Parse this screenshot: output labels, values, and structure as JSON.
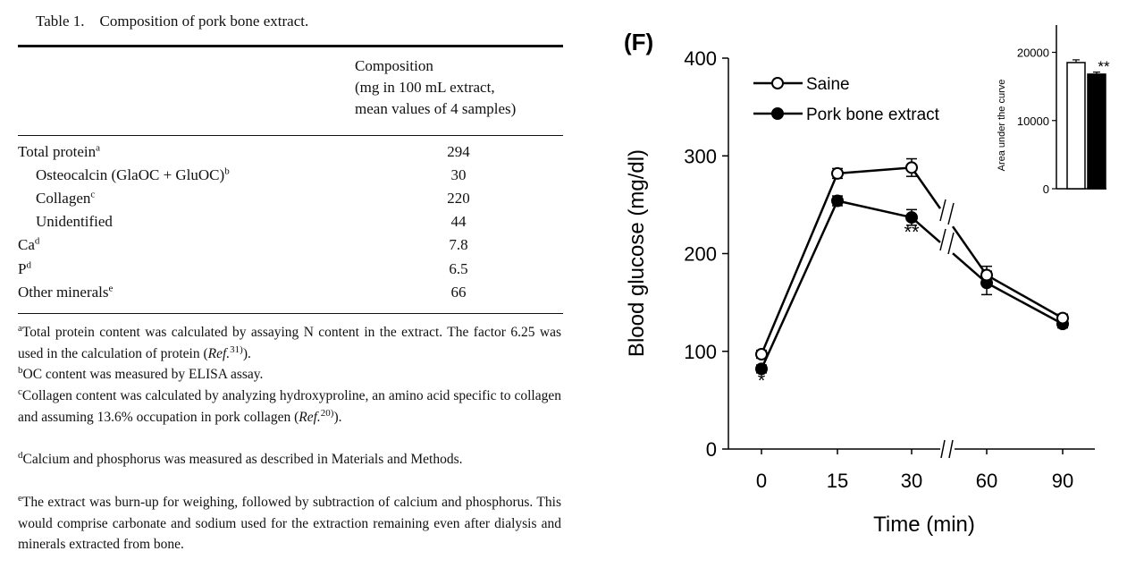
{
  "table": {
    "caption": "Table 1.    Composition of pork bone extract.",
    "column_header": [
      "Composition",
      "(mg in 100 mL extract,",
      "mean values of 4 samples)"
    ],
    "rows": [
      {
        "label": "Total protein",
        "sup": "a",
        "value": "294",
        "indent": false
      },
      {
        "label": "Osteocalcin (GlaOC + GluOC)",
        "sup": "b",
        "value": "30",
        "indent": true
      },
      {
        "label": "Collagen",
        "sup": "c",
        "value": "220",
        "indent": true
      },
      {
        "label": "Unidentified",
        "sup": "",
        "value": "44",
        "indent": true
      },
      {
        "label": "Ca",
        "sup": "d",
        "value": "7.8",
        "indent": false
      },
      {
        "label": "P",
        "sup": "d",
        "value": "6.5",
        "indent": false
      },
      {
        "label": "Other minerals",
        "sup": "e",
        "value": "66",
        "indent": false
      }
    ],
    "footnotes": [
      {
        "mark": "a",
        "parts": [
          [
            "t",
            "Total protein content was calculated by assaying N content in the extract. The factor 6.25 was used in the calculation of protein ("
          ],
          [
            "i",
            "Ref."
          ],
          [
            "s",
            "31)"
          ],
          [
            "t",
            ")."
          ]
        ]
      },
      {
        "mark": "b",
        "parts": [
          [
            "t",
            "OC content was measured by ELISA assay."
          ]
        ]
      },
      {
        "mark": "c",
        "parts": [
          [
            "t",
            "Collagen content was calculated by analyzing hydroxyproline, an amino acid specific to collagen and assuming 13.6% occupation in pork collagen ("
          ],
          [
            "i",
            "Ref."
          ],
          [
            "s",
            "20)"
          ],
          [
            "t",
            ")."
          ]
        ]
      },
      {
        "mark": "d",
        "parts": [
          [
            "t",
            "Calcium and phosphorus was measured as described in Materials and Methods."
          ]
        ]
      },
      {
        "mark": "e",
        "parts": [
          [
            "t",
            "The extract was burn-up for weighing, followed by subtraction of calcium and phosphorus. This would comprise carbonate and sodium used for the extraction remaining even after dialysis and minerals extracted from bone."
          ]
        ]
      }
    ]
  },
  "figure": {
    "panel_label": "(F)",
    "chart_data": [
      {
        "type": "line",
        "xlabel": "Time (min)",
        "ylabel": "Blood glucose (mg/dl)",
        "x": [
          0,
          15,
          30,
          60,
          90
        ],
        "x_ticks": [
          "0",
          "15",
          "30",
          "60",
          "90"
        ],
        "x_axis_break_between": [
          30,
          60
        ],
        "ylim": [
          0,
          400
        ],
        "y_ticks": [
          0,
          100,
          200,
          300,
          400
        ],
        "legend": "top-left",
        "grid": false,
        "series": [
          {
            "name": "Saine",
            "marker": "open-circle",
            "color": "#ffffff",
            "values": [
              97,
              282,
              288,
              178,
              134
            ],
            "errors": [
              4,
              5,
              9,
              9,
              4
            ]
          },
          {
            "name": "Pork bone extract",
            "marker": "filled-circle",
            "color": "#000000",
            "values": [
              82,
              254,
              237,
              170,
              128
            ],
            "errors": [
              4,
              5,
              8,
              12,
              4
            ]
          }
        ],
        "annotations": [
          {
            "x": 0,
            "y": 63,
            "text": "*"
          },
          {
            "x": 30,
            "y": 215,
            "text": "**"
          }
        ]
      },
      {
        "type": "bar",
        "position": "inset top-right",
        "ylabel": "Area under the curve",
        "categories": [
          "Saine",
          "Pork bone extract"
        ],
        "values": [
          18500,
          16800
        ],
        "errors": [
          400,
          300
        ],
        "colors": [
          "#ffffff",
          "#000000"
        ],
        "ylim": [
          0,
          24000
        ],
        "y_ticks": [
          0,
          10000,
          20000
        ],
        "annotations": [
          {
            "category": "Pork bone extract",
            "text": "**"
          }
        ]
      }
    ]
  }
}
